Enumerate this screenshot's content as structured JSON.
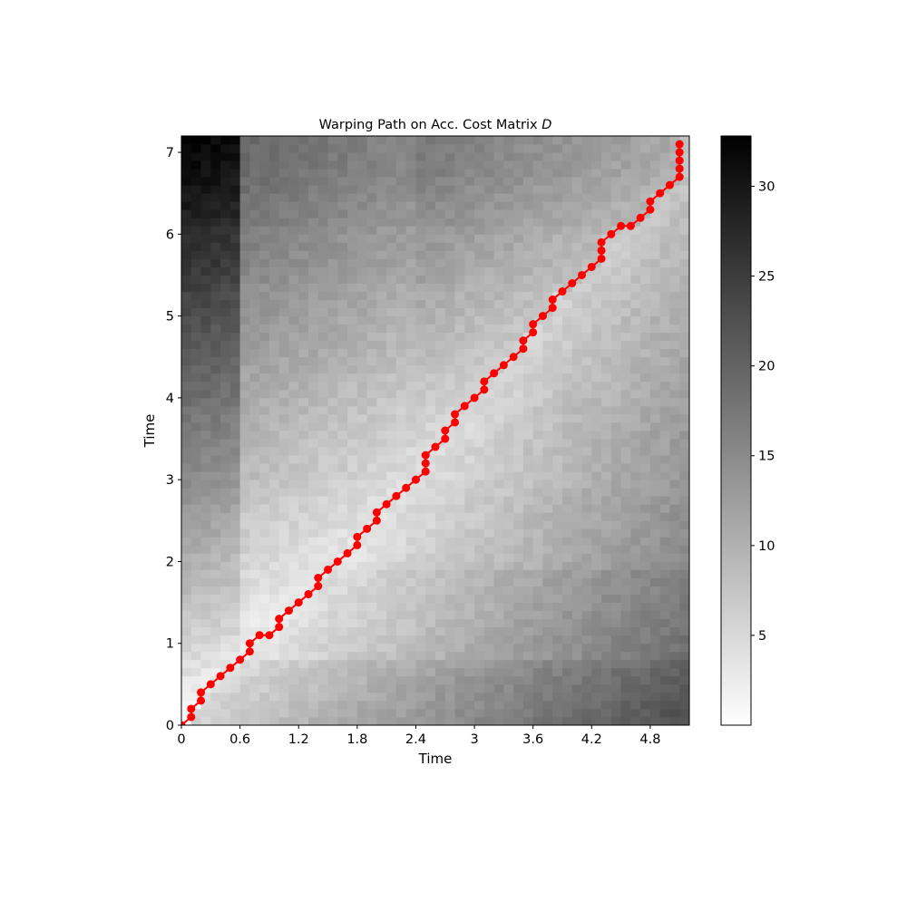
{
  "chart_data": {
    "type": "heatmap",
    "title": "Warping Path on Acc. Cost Matrix ",
    "title_italic": "D",
    "xlabel": "Time",
    "ylabel": "Time",
    "xlim": [
      0,
      5.2
    ],
    "ylim": [
      0,
      7.2
    ],
    "x_ticks": [
      "0",
      "0.6",
      "1.2",
      "1.8",
      "2.4",
      "3",
      "3.6",
      "4.2",
      "4.8"
    ],
    "y_ticks": [
      "0",
      "1",
      "2",
      "3",
      "4",
      "5",
      "6",
      "7"
    ],
    "colorbar": {
      "range": [
        0,
        32.8
      ],
      "ticks": [
        "5",
        "10",
        "15",
        "20",
        "25",
        "30"
      ],
      "colormap": "Greys"
    },
    "path_color": "#ff0000",
    "warping_path": [
      [
        0,
        0
      ],
      [
        0.1,
        0.1
      ],
      [
        0.1,
        0.2
      ],
      [
        0.2,
        0.3
      ],
      [
        0.2,
        0.4
      ],
      [
        0.3,
        0.5
      ],
      [
        0.4,
        0.6
      ],
      [
        0.5,
        0.7
      ],
      [
        0.6,
        0.8
      ],
      [
        0.7,
        0.9
      ],
      [
        0.7,
        1.0
      ],
      [
        0.8,
        1.1
      ],
      [
        0.9,
        1.1
      ],
      [
        1.0,
        1.2
      ],
      [
        1.0,
        1.3
      ],
      [
        1.1,
        1.4
      ],
      [
        1.2,
        1.5
      ],
      [
        1.3,
        1.6
      ],
      [
        1.4,
        1.7
      ],
      [
        1.4,
        1.8
      ],
      [
        1.5,
        1.9
      ],
      [
        1.6,
        2.0
      ],
      [
        1.7,
        2.1
      ],
      [
        1.8,
        2.2
      ],
      [
        1.8,
        2.3
      ],
      [
        1.9,
        2.4
      ],
      [
        2.0,
        2.5
      ],
      [
        2.0,
        2.6
      ],
      [
        2.1,
        2.7
      ],
      [
        2.2,
        2.8
      ],
      [
        2.3,
        2.9
      ],
      [
        2.4,
        3.0
      ],
      [
        2.5,
        3.1
      ],
      [
        2.5,
        3.2
      ],
      [
        2.5,
        3.3
      ],
      [
        2.6,
        3.4
      ],
      [
        2.7,
        3.5
      ],
      [
        2.7,
        3.6
      ],
      [
        2.8,
        3.7
      ],
      [
        2.8,
        3.8
      ],
      [
        2.9,
        3.9
      ],
      [
        3.0,
        4.0
      ],
      [
        3.1,
        4.1
      ],
      [
        3.1,
        4.2
      ],
      [
        3.2,
        4.3
      ],
      [
        3.3,
        4.4
      ],
      [
        3.4,
        4.5
      ],
      [
        3.5,
        4.6
      ],
      [
        3.5,
        4.7
      ],
      [
        3.6,
        4.8
      ],
      [
        3.6,
        4.9
      ],
      [
        3.7,
        5.0
      ],
      [
        3.8,
        5.1
      ],
      [
        3.8,
        5.2
      ],
      [
        3.9,
        5.3
      ],
      [
        4.0,
        5.4
      ],
      [
        4.1,
        5.5
      ],
      [
        4.2,
        5.6
      ],
      [
        4.3,
        5.7
      ],
      [
        4.3,
        5.8
      ],
      [
        4.3,
        5.9
      ],
      [
        4.4,
        6.0
      ],
      [
        4.5,
        6.1
      ],
      [
        4.6,
        6.1
      ],
      [
        4.7,
        6.2
      ],
      [
        4.8,
        6.3
      ],
      [
        4.8,
        6.4
      ],
      [
        4.9,
        6.5
      ],
      [
        5.0,
        6.6
      ],
      [
        5.1,
        6.7
      ],
      [
        5.1,
        6.8
      ],
      [
        5.1,
        6.9
      ],
      [
        5.1,
        7.0
      ],
      [
        5.1,
        7.1
      ]
    ]
  }
}
